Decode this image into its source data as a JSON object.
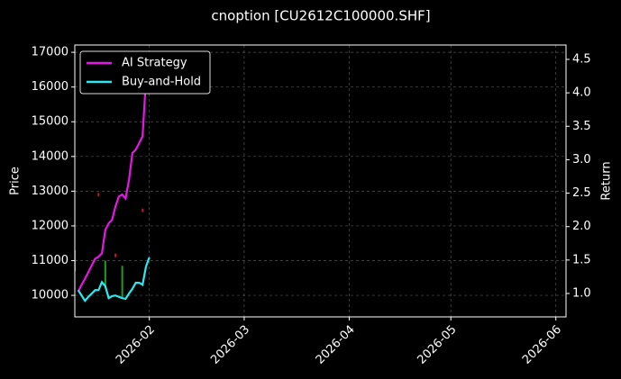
{
  "chart_data": {
    "type": "line",
    "title": "cnoption [CU2612C100000.SHF]",
    "y_label": "Price",
    "y2_label": "Return",
    "x": [
      "2026-01-11",
      "2026-01-12",
      "2026-01-13",
      "2026-01-14",
      "2026-01-15",
      "2026-01-16",
      "2026-01-17",
      "2026-01-18",
      "2026-01-19",
      "2026-01-20",
      "2026-01-21",
      "2026-01-22",
      "2026-01-23",
      "2026-01-24",
      "2026-01-25",
      "2026-01-26",
      "2026-01-27",
      "2026-01-28",
      "2026-01-29",
      "2026-01-30",
      "2026-01-31",
      "2026-02-01"
    ],
    "series": [
      {
        "name": "AI Strategy",
        "color": "#e815e8",
        "axis": "y2",
        "values": [
          1.03,
          1.13,
          1.22,
          1.32,
          1.42,
          1.52,
          1.55,
          1.6,
          1.95,
          2.05,
          2.1,
          2.3,
          2.45,
          2.48,
          2.42,
          2.7,
          3.1,
          3.15,
          3.25,
          3.35,
          4.2,
          null
        ]
      },
      {
        "name": "Buy-and-Hold",
        "color": "#2ee8f0",
        "axis": "y2",
        "values": [
          1.05,
          0.97,
          0.89,
          0.95,
          1.0,
          1.05,
          1.05,
          1.17,
          1.11,
          0.93,
          0.96,
          0.97,
          0.95,
          0.93,
          0.92,
          1.0,
          1.07,
          1.16,
          1.16,
          1.13,
          1.4,
          1.54
        ]
      }
    ],
    "price_wicks": {
      "x": [
        "2026-01-10",
        "2026-01-17",
        "2026-01-19",
        "2026-01-22",
        "2026-01-24",
        "2026-01-30"
      ],
      "low": [
        10700,
        12850,
        10200,
        11100,
        9950,
        12400
      ],
      "high": [
        11300,
        12950,
        11000,
        11200,
        10850,
        12500
      ],
      "colors": [
        "#1f9e1f",
        "#c0143c",
        "#1f9e1f",
        "#c0143c",
        "#1f9e1f",
        "#c0143c"
      ]
    },
    "xlim": [
      "2026-01-10",
      "2026-06-04"
    ],
    "xticks": [
      {
        "value": "2026-02-01",
        "label": "2026-02"
      },
      {
        "value": "2026-03-01",
        "label": "2026-03"
      },
      {
        "value": "2026-04-01",
        "label": "2026-04"
      },
      {
        "value": "2026-05-01",
        "label": "2026-05"
      },
      {
        "value": "2026-06-01",
        "label": "2026-06"
      }
    ],
    "ylim": [
      9380,
      17210
    ],
    "yticks": [
      10000,
      11000,
      12000,
      13000,
      14000,
      15000,
      16000,
      17000
    ],
    "y2lim": [
      0.65,
      4.715
    ],
    "y2ticks": [
      {
        "value": 1,
        "label": "1.0"
      },
      1.5,
      {
        "value": 2,
        "label": "2.0"
      },
      2.5,
      {
        "value": 3,
        "label": "3.0"
      },
      3.5,
      {
        "value": 4,
        "label": "4.0"
      },
      4.5
    ],
    "grid": true,
    "legend": "upper left"
  }
}
